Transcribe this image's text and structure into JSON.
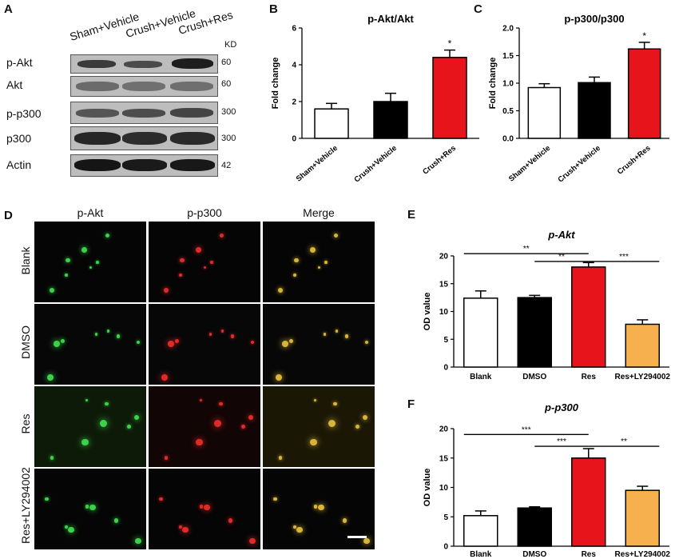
{
  "panels": {
    "A": {
      "label": "A",
      "lanes": [
        "Sham+Vehicle",
        "Crush+Vehicle",
        "Crush+Res"
      ],
      "kd_label": "KD",
      "blots": [
        {
          "name": "p-Akt",
          "kd": "60"
        },
        {
          "name": "Akt",
          "kd": "60"
        },
        {
          "name": "p-p300",
          "kd": "300"
        },
        {
          "name": "p300",
          "kd": "300"
        },
        {
          "name": "Actin",
          "kd": "42"
        }
      ]
    },
    "D": {
      "label": "D",
      "columns": [
        "p-Akt",
        "p-p300",
        "Merge"
      ],
      "rows": [
        "Blank",
        "DMSO",
        "Res",
        "Res+LY294002"
      ]
    }
  },
  "chart_data": [
    {
      "panel": "B",
      "type": "bar",
      "title": "p-Akt/Akt",
      "ylabel": "Fold change",
      "ylim": [
        0,
        6
      ],
      "yticks": [
        "0",
        "2",
        "4",
        "6"
      ],
      "categories": [
        "Sham+Vehicle",
        "Crush+Vehicle",
        "Crush+Res"
      ],
      "values": [
        1.6,
        2.0,
        4.4
      ],
      "errors": [
        0.3,
        0.45,
        0.4
      ],
      "colors": [
        "#ffffff",
        "#000000",
        "#e8141c"
      ],
      "annotations": [
        {
          "category": "Crush+Res",
          "text": "*"
        }
      ]
    },
    {
      "panel": "C",
      "type": "bar",
      "title": "p-p300/p300",
      "ylabel": "Fold change",
      "ylim": [
        0,
        2.0
      ],
      "yticks": [
        "0.0",
        "0.5",
        "1.0",
        "1.5",
        "2.0"
      ],
      "categories": [
        "Sham+Vehicle",
        "Crush+Vehicle",
        "Crush+Res"
      ],
      "values": [
        0.92,
        1.01,
        1.62
      ],
      "errors": [
        0.07,
        0.1,
        0.12
      ],
      "colors": [
        "#ffffff",
        "#000000",
        "#e8141c"
      ],
      "annotations": [
        {
          "category": "Crush+Res",
          "text": "*"
        }
      ]
    },
    {
      "panel": "E",
      "type": "bar",
      "title": "p-Akt",
      "ylabel": "OD value",
      "ylim": [
        0,
        20
      ],
      "yticks": [
        "0",
        "5",
        "10",
        "15",
        "20"
      ],
      "categories": [
        "Blank",
        "DMSO",
        "Res",
        "Res+LY294002"
      ],
      "values": [
        12.4,
        12.5,
        18.0,
        7.7
      ],
      "errors": [
        1.3,
        0.4,
        0.8,
        0.8
      ],
      "colors": [
        "#ffffff",
        "#000000",
        "#e8141c",
        "#f6b04e"
      ],
      "significance": [
        {
          "from": 0,
          "to": 2,
          "text": "**",
          "value": 20.4
        },
        {
          "from": 1,
          "to": 2,
          "text": "**",
          "value": 19.0
        },
        {
          "from": 2,
          "to": 3,
          "text": "***",
          "value": 19.0
        }
      ]
    },
    {
      "panel": "F",
      "type": "bar",
      "title": "p-p300",
      "ylabel": "OD value",
      "ylim": [
        0,
        20
      ],
      "yticks": [
        "0",
        "5",
        "10",
        "15",
        "20"
      ],
      "categories": [
        "Blank",
        "DMSO",
        "Res",
        "Res+LY294002"
      ],
      "values": [
        5.2,
        6.5,
        15.0,
        9.5
      ],
      "errors": [
        0.8,
        0.2,
        1.6,
        0.7
      ],
      "colors": [
        "#ffffff",
        "#000000",
        "#e8141c",
        "#f6b04e"
      ],
      "significance": [
        {
          "from": 0,
          "to": 2,
          "text": "***",
          "value": 19.0
        },
        {
          "from": 1,
          "to": 2,
          "text": "***",
          "value": 17.0
        },
        {
          "from": 2,
          "to": 3,
          "text": "**",
          "value": 17.0
        }
      ]
    }
  ]
}
